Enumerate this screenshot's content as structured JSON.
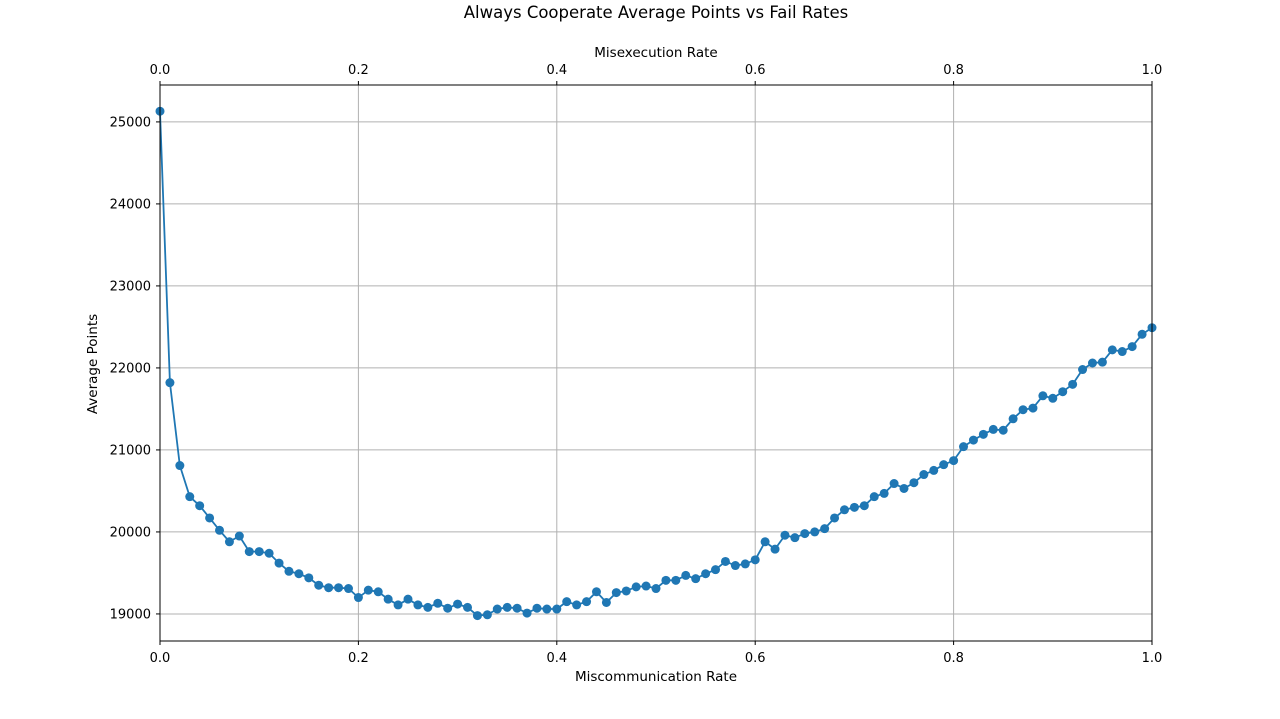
{
  "chart_data": {
    "type": "line",
    "title": "Always Cooperate Average Points vs Fail Rates",
    "xlabel": "Miscommunication Rate",
    "x2label": "Misexecution Rate",
    "ylabel": "Average Points",
    "xlim": [
      0,
      1
    ],
    "x2lim": [
      0,
      1
    ],
    "ylim": [
      18670,
      25450
    ],
    "grid": true,
    "marker": "circle",
    "color": "#1f77b4",
    "xticks": [
      "0.0",
      "0.2",
      "0.4",
      "0.6",
      "0.8",
      "1.0"
    ],
    "x2ticks": [
      "0.0",
      "0.2",
      "0.4",
      "0.6",
      "0.8",
      "1.0"
    ],
    "yticks": [
      "19000",
      "20000",
      "21000",
      "22000",
      "23000",
      "24000",
      "25000"
    ],
    "series": [
      {
        "x": [
          0.0,
          0.01,
          0.02,
          0.03,
          0.04,
          0.05,
          0.06,
          0.07,
          0.08,
          0.09,
          0.1,
          0.11,
          0.12,
          0.13,
          0.14,
          0.15,
          0.16,
          0.17,
          0.18,
          0.19,
          0.2,
          0.21,
          0.22,
          0.23,
          0.24,
          0.25,
          0.26,
          0.27,
          0.28,
          0.29,
          0.3,
          0.31,
          0.32,
          0.33,
          0.34,
          0.35,
          0.36,
          0.37,
          0.38,
          0.39,
          0.4,
          0.41,
          0.42,
          0.43,
          0.44,
          0.45,
          0.46,
          0.47,
          0.48,
          0.49,
          0.5,
          0.51,
          0.52,
          0.53,
          0.54,
          0.55,
          0.56,
          0.57,
          0.58,
          0.59,
          0.6,
          0.61,
          0.62,
          0.63,
          0.64,
          0.65,
          0.66,
          0.67,
          0.68,
          0.69,
          0.7,
          0.71,
          0.72,
          0.73,
          0.74,
          0.75,
          0.76,
          0.77,
          0.78,
          0.79,
          0.8,
          0.81,
          0.82,
          0.83,
          0.84,
          0.85,
          0.86,
          0.87,
          0.88,
          0.89,
          0.9,
          0.91,
          0.92,
          0.93,
          0.94,
          0.95,
          0.96,
          0.97,
          0.98,
          0.99,
          1.0
        ],
        "y": [
          25130,
          21820,
          20810,
          20430,
          20320,
          20170,
          20020,
          19880,
          19950,
          19760,
          19760,
          19740,
          19620,
          19520,
          19490,
          19440,
          19350,
          19320,
          19320,
          19310,
          19200,
          19290,
          19270,
          19180,
          19110,
          19180,
          19110,
          19080,
          19130,
          19070,
          19120,
          19080,
          18980,
          18990,
          19060,
          19080,
          19070,
          19010,
          19070,
          19060,
          19060,
          19150,
          19110,
          19150,
          19270,
          19140,
          19260,
          19280,
          19330,
          19340,
          19310,
          19410,
          19410,
          19470,
          19430,
          19490,
          19540,
          19640,
          19590,
          19610,
          19660,
          19880,
          19790,
          19960,
          19930,
          19980,
          20000,
          20040,
          20170,
          20270,
          20300,
          20320,
          20430,
          20470,
          20590,
          20530,
          20600,
          20700,
          20750,
          20820,
          20870,
          21040,
          21120,
          21190,
          21250,
          21240,
          21380,
          21490,
          21510,
          21660,
          21630,
          21710,
          21800,
          21980,
          22060,
          22070,
          22220,
          22200,
          22260,
          22410,
          22490
        ]
      }
    ]
  }
}
